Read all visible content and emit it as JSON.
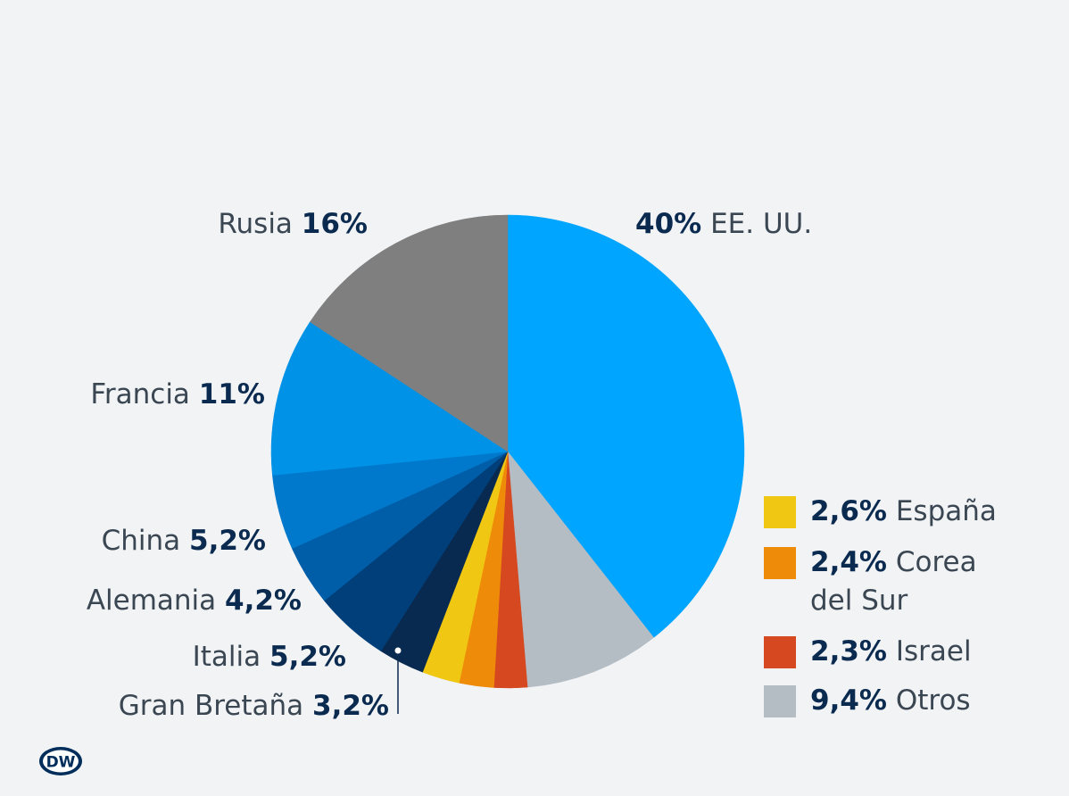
{
  "chart_data": {
    "type": "pie",
    "slices": [
      {
        "name": "EE. UU.",
        "value": 40,
        "label": "40%",
        "color": "#00a5ff"
      },
      {
        "name": "Otros",
        "value": 9.4,
        "label": "9,4%",
        "color": "#b4bcc4"
      },
      {
        "name": "Israel",
        "value": 2.3,
        "label": "2,3%",
        "color": "#d64820"
      },
      {
        "name": "Corea del Sur",
        "value": 2.4,
        "label": "2,4%",
        "color": "#ee8c0a"
      },
      {
        "name": "España",
        "value": 2.6,
        "label": "2,6%",
        "color": "#f0c814"
      },
      {
        "name": "Gran Bretaña",
        "value": 3.2,
        "label": "3,2%",
        "color": "#082a50"
      },
      {
        "name": "Italia",
        "value": 5.2,
        "label": "5,2%",
        "color": "#003f7a"
      },
      {
        "name": "Alemania",
        "value": 4.2,
        "label": "4,2%",
        "color": "#005ea8"
      },
      {
        "name": "China",
        "value": 5.2,
        "label": "5,2%",
        "color": "#0079cc"
      },
      {
        "name": "Francia",
        "value": 11,
        "label": "11%",
        "color": "#0092e6"
      },
      {
        "name": "Rusia",
        "value": 16,
        "label": "16%",
        "color": "#7f7f7f"
      }
    ],
    "start_angle_deg": 0,
    "direction": "clockwise"
  },
  "outer_labels": [
    {
      "name": "Rusia",
      "pct": "16%",
      "order": "name-first"
    },
    {
      "name": "EE. UU.",
      "pct": "40%",
      "order": "pct-first"
    },
    {
      "name": "Francia",
      "pct": "11%",
      "order": "name-first"
    },
    {
      "name": "China",
      "pct": "5,2%",
      "order": "name-first"
    },
    {
      "name": "Alemania",
      "pct": "4,2%",
      "order": "name-first"
    },
    {
      "name": "Italia",
      "pct": "5,2%",
      "order": "name-first"
    },
    {
      "name": "Gran Bretaña",
      "pct": "3,2%",
      "order": "name-first"
    }
  ],
  "legend": [
    {
      "pct": "2,6%",
      "name": "España",
      "color": "#f0c814"
    },
    {
      "pct": "2,4%",
      "name": "Corea",
      "name2": "del Sur",
      "color": "#ee8c0a"
    },
    {
      "pct": "2,3%",
      "name": "Israel",
      "color": "#d64820"
    },
    {
      "pct": "9,4%",
      "name": "Otros",
      "color": "#b4bcc4"
    }
  ],
  "logo": {
    "text": "DW",
    "color": "#002d5a"
  }
}
